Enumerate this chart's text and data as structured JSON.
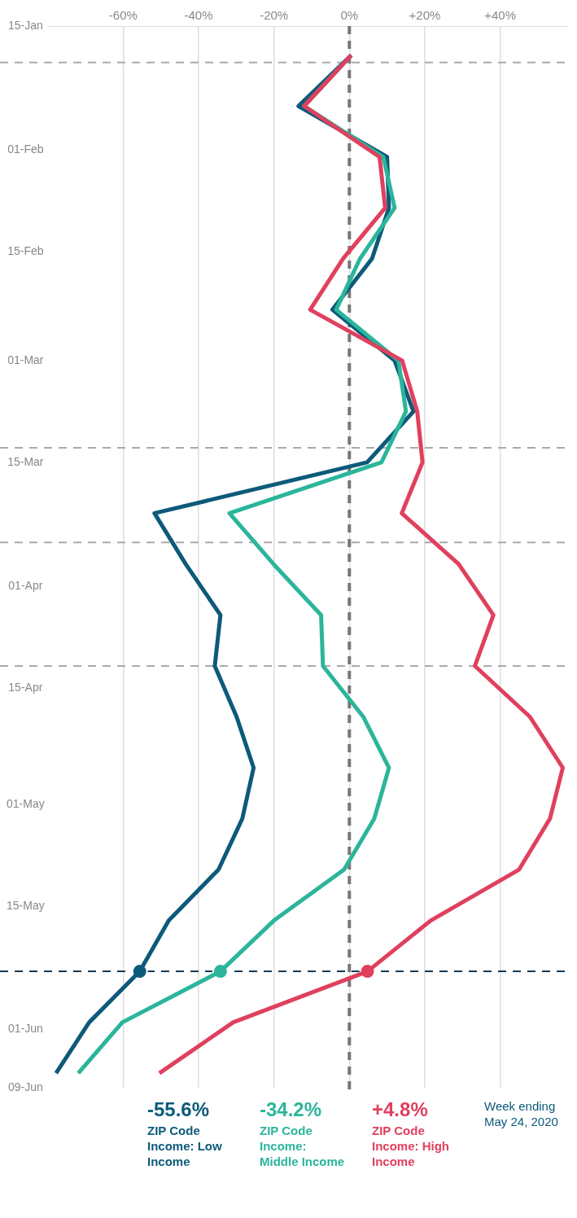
{
  "chart_data": {
    "type": "line",
    "orientation": "horizontal",
    "x": [
      "2020-01-19",
      "2020-01-26",
      "2020-02-02",
      "2020-02-09",
      "2020-02-16",
      "2020-02-23",
      "2020-03-01",
      "2020-03-08",
      "2020-03-15",
      "2020-03-22",
      "2020-03-29",
      "2020-04-05",
      "2020-04-12",
      "2020-04-19",
      "2020-04-26",
      "2020-05-03",
      "2020-05-10",
      "2020-05-17",
      "2020-05-24",
      "2020-05-31",
      "2020-06-07"
    ],
    "series": [
      {
        "name": "ZIP Code Income: High Income",
        "color": "#e0405e",
        "values": [
          0.5,
          -12,
          8,
          9.5,
          -1.7,
          -10.4,
          14,
          18,
          19.4,
          13.9,
          29,
          38.2,
          33.3,
          47.9,
          56.6,
          53.2,
          45,
          21.6,
          4.8,
          -30.8,
          -50.4
        ]
      },
      {
        "name": "ZIP Code Income: Middle Income",
        "color": "#2bb59b",
        "values": [
          0.5,
          -12,
          9,
          12,
          2.8,
          -3.5,
          13,
          15,
          8.5,
          -31.8,
          -20.1,
          -7.5,
          -7,
          3.7,
          10.5,
          6.6,
          -1.4,
          -20,
          -34.2,
          -60.2,
          -71.9
        ]
      },
      {
        "name": "ZIP Code Income: Low Income",
        "color": "#0d5a7a",
        "values": [
          0.5,
          -13.5,
          10,
          10.5,
          6,
          -4.5,
          12,
          17,
          4.7,
          -51.7,
          -43.4,
          -34.2,
          -35.7,
          -29.9,
          -25.4,
          -28.4,
          -34.7,
          -47.9,
          -55.6,
          -69,
          -77.8
        ]
      },
      {
        "type": "scatter",
        "marker": "circle",
        "color": "#e0405e",
        "x": [
          "2020-05-24"
        ],
        "values": [
          4.8
        ]
      },
      {
        "type": "scatter",
        "marker": "circle",
        "color": "#2bb59b",
        "x": [
          "2020-05-24"
        ],
        "values": [
          -34.2
        ]
      },
      {
        "type": "scatter",
        "marker": "circle",
        "color": "#0d5a7a",
        "x": [
          "2020-05-24"
        ],
        "values": [
          -55.6
        ]
      }
    ],
    "ylim": [
      "2020-06-09",
      "2020-01-15"
    ],
    "yticks": [
      {
        "value": "2020-01-15",
        "label": "15-Jan"
      },
      {
        "value": "2020-02-01",
        "label": "01-Feb"
      },
      {
        "value": "2020-02-15",
        "label": "15-Feb"
      },
      {
        "value": "2020-03-01",
        "label": "01-Mar"
      },
      {
        "value": "2020-03-15",
        "label": "15-Mar"
      },
      {
        "value": "2020-04-01",
        "label": "01-Apr"
      },
      {
        "value": "2020-04-15",
        "label": "15-Apr"
      },
      {
        "value": "2020-05-01",
        "label": "01-May"
      },
      {
        "value": "2020-05-15",
        "label": "15-May"
      },
      {
        "value": "2020-06-01",
        "label": "01-Jun"
      },
      {
        "value": "2020-06-09",
        "label": "09-Jun"
      }
    ],
    "xlim": [
      -80,
      58
    ],
    "xticks": [
      {
        "value": -60,
        "label": "-60%"
      },
      {
        "value": -40,
        "label": "-40%"
      },
      {
        "value": -20,
        "label": "-20%"
      },
      {
        "value": 0,
        "label": "0%"
      },
      {
        "value": 20,
        "label": "+20%"
      },
      {
        "value": 40,
        "label": "+40%"
      }
    ],
    "ref_lines": [
      {
        "axis": "x",
        "value": 0,
        "color": "#777777",
        "line_style": "dashed"
      },
      {
        "axis": "y",
        "value": "2020-01-20",
        "color": "#aaaaaa",
        "line_style": "dashed"
      },
      {
        "axis": "y",
        "value": "2020-03-13",
        "color": "#aaaaaa",
        "line_style": "dashed"
      },
      {
        "axis": "y",
        "value": "2020-03-26",
        "color": "#aaaaaa",
        "line_style": "dashed"
      },
      {
        "axis": "y",
        "value": "2020-04-12",
        "color": "#aaaaaa",
        "line_style": "dashed"
      },
      {
        "axis": "y",
        "value": "2020-05-24",
        "color": "#0d3a5a",
        "line_style": "dashed"
      }
    ],
    "annotations": [
      "Week ending May 24, 2020",
      "+4.8%",
      "-34.2%",
      "-55.6%"
    ],
    "grid": "x",
    "legend": false,
    "line_style": "solid"
  }
}
